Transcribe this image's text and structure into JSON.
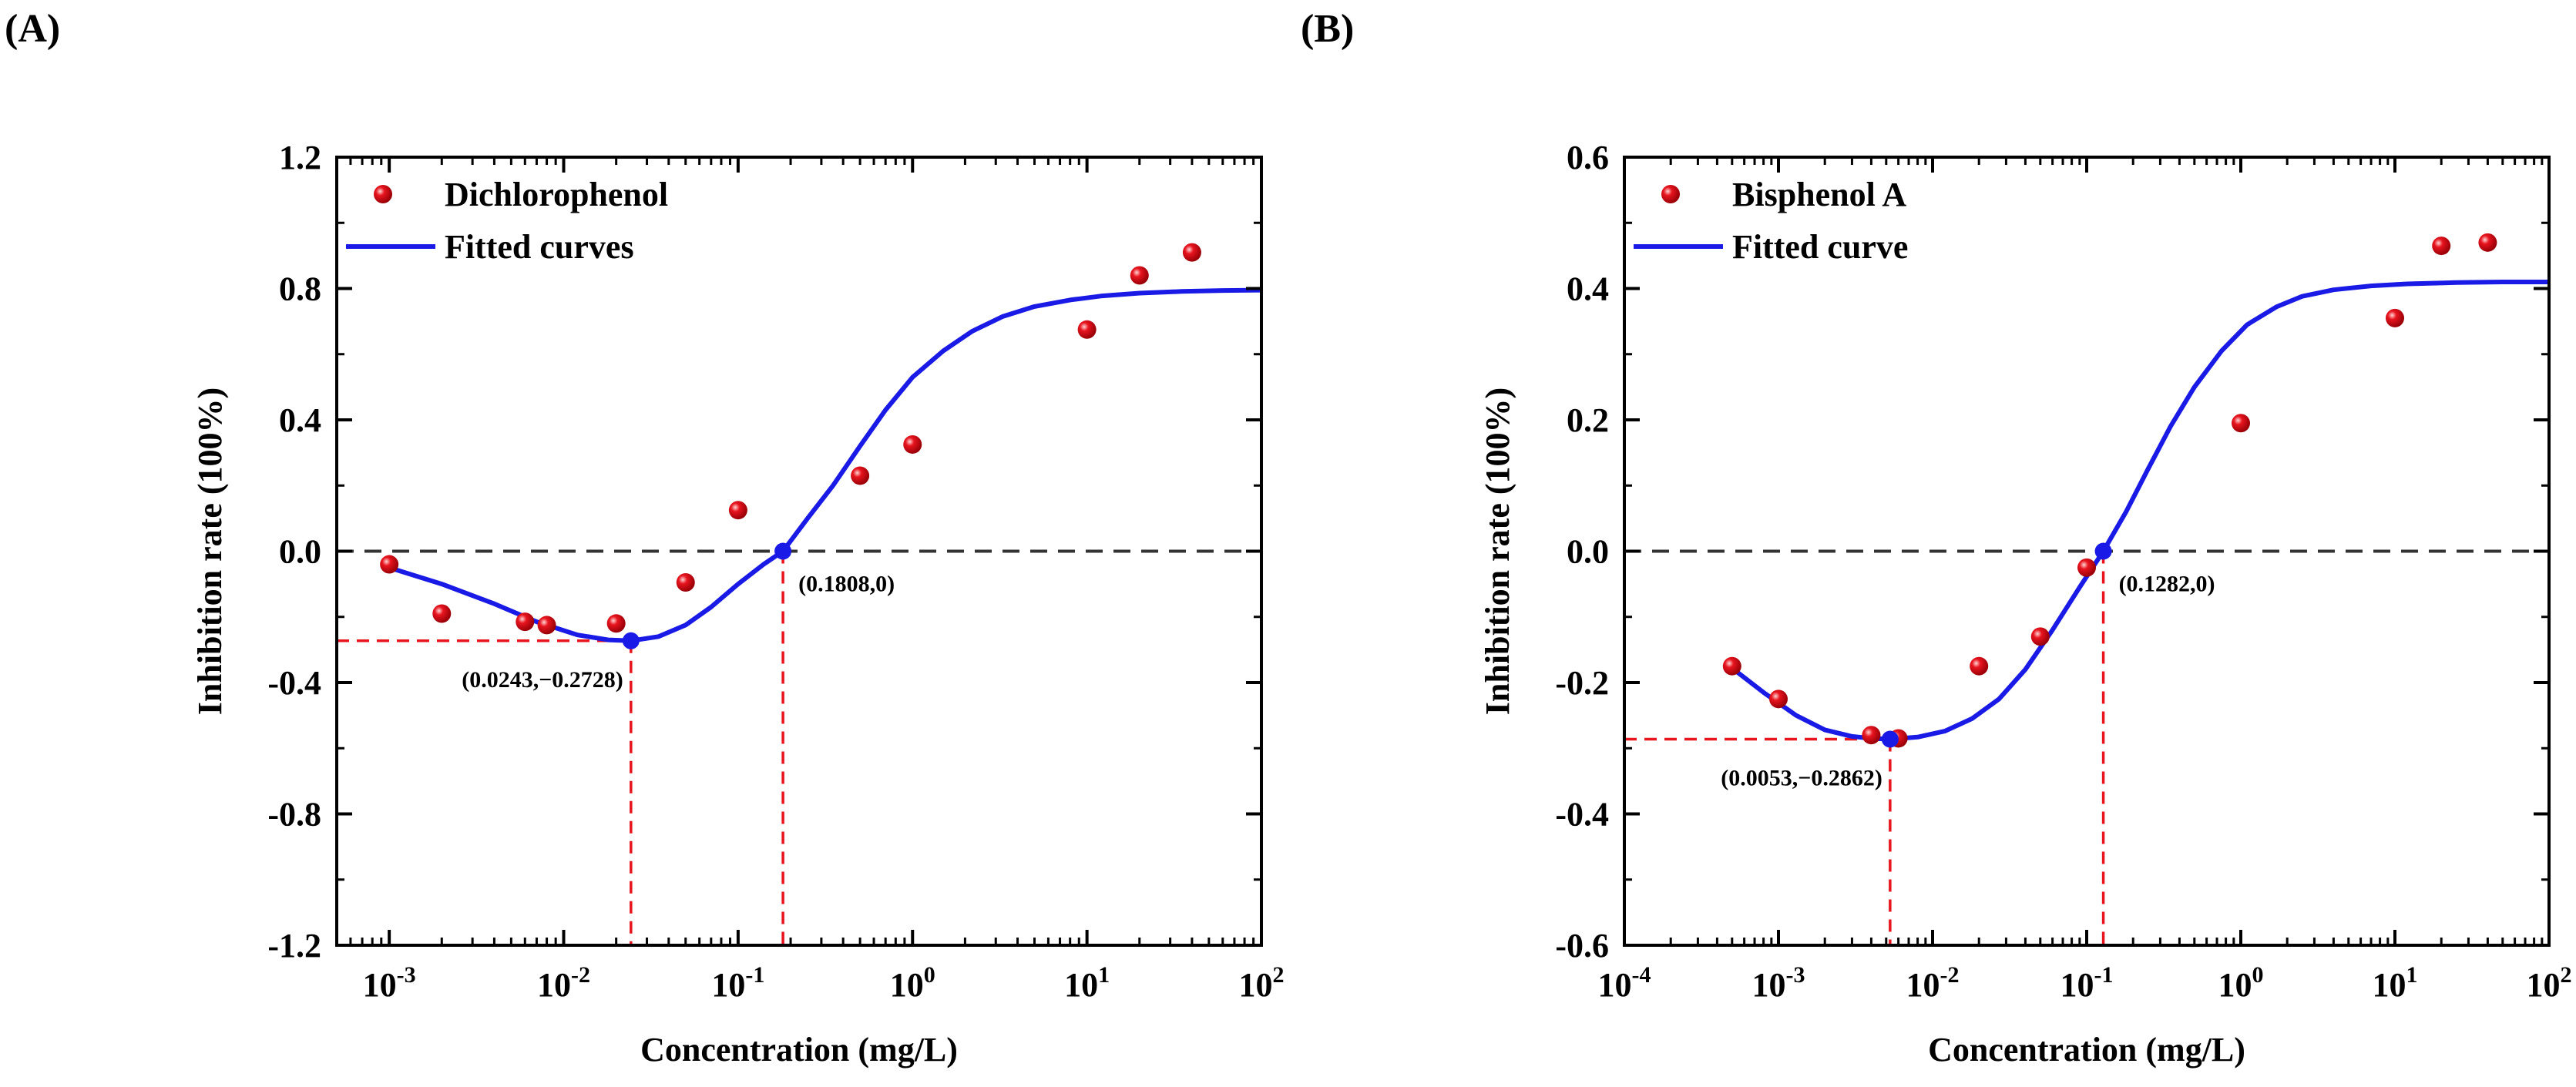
{
  "panels": [
    {
      "label": "(A)"
    },
    {
      "label": "(B)"
    }
  ],
  "colors": {
    "points": "#e8141e",
    "curve": "#1a1ae6",
    "special": "#1a1ae6",
    "zero_line": "#333333",
    "guide": "#e8141e"
  },
  "chart_data": [
    {
      "type": "scatter",
      "xscale": "log",
      "xlim": [
        0.0005,
        100
      ],
      "ylim": [
        -1.2,
        1.2
      ],
      "xlabel": "Concentration (mg/L)",
      "ylabel": "Inhibition rate (100%)",
      "xticks": [
        "10^-3",
        "10^-2",
        "10^-1",
        "10^0",
        "10^1",
        "10^2"
      ],
      "yticks": [
        "-1.2",
        "-0.8",
        "-0.4",
        "0.0",
        "0.4",
        "0.8",
        "1.2"
      ],
      "legend_position": "top-left",
      "series": [
        {
          "name": "Dichlorophenol",
          "kind": "points",
          "x": [
            0.001,
            0.002,
            0.006,
            0.008,
            0.02,
            0.05,
            0.1,
            0.5,
            1,
            10,
            20,
            40
          ],
          "y": [
            -0.04,
            -0.19,
            -0.215,
            -0.225,
            -0.22,
            -0.095,
            0.125,
            0.23,
            0.325,
            0.675,
            0.84,
            0.91
          ]
        },
        {
          "name": "Fitted curves",
          "kind": "line",
          "x": [
            0.001,
            0.002,
            0.004,
            0.007,
            0.012,
            0.018,
            0.0243,
            0.035,
            0.05,
            0.07,
            0.1,
            0.14,
            0.1808,
            0.25,
            0.35,
            0.5,
            0.7,
            1,
            1.5,
            2.2,
            3.3,
            5,
            8,
            12,
            20,
            35,
            60,
            100
          ],
          "y": [
            -0.05,
            -0.1,
            -0.16,
            -0.215,
            -0.255,
            -0.27,
            -0.2728,
            -0.26,
            -0.225,
            -0.17,
            -0.1,
            -0.04,
            0,
            0.1,
            0.2,
            0.32,
            0.43,
            0.53,
            0.61,
            0.67,
            0.715,
            0.745,
            0.765,
            0.777,
            0.786,
            0.791,
            0.794,
            0.795
          ]
        }
      ],
      "special_points": [
        {
          "x": 0.0243,
          "y": -0.2728,
          "label": "(0.0243,−0.2728)"
        },
        {
          "x": 0.1808,
          "y": 0,
          "label": "(0.1808,0)"
        }
      ]
    },
    {
      "type": "scatter",
      "xscale": "log",
      "xlim": [
        0.0001,
        100
      ],
      "ylim": [
        -0.6,
        0.6
      ],
      "xlabel": "Concentration (mg/L)",
      "ylabel": "Inhibition rate (100%)",
      "xticks": [
        "10^-4",
        "10^-3",
        "10^-2",
        "10^-1",
        "10^0",
        "10^1",
        "10^2"
      ],
      "yticks": [
        "-0.6",
        "-0.4",
        "-0.2",
        "0.0",
        "0.2",
        "0.4",
        "0.6"
      ],
      "legend_position": "top-left",
      "series": [
        {
          "name": "Bisphenol A",
          "kind": "points",
          "x": [
            0.0005,
            0.001,
            0.004,
            0.006,
            0.02,
            0.05,
            0.1,
            1,
            10,
            20,
            40
          ],
          "y": [
            -0.175,
            -0.225,
            -0.28,
            -0.285,
            -0.175,
            -0.13,
            -0.025,
            0.195,
            0.355,
            0.465,
            0.47
          ]
        },
        {
          "name": "Fitted curve",
          "kind": "line",
          "x": [
            0.0005,
            0.0008,
            0.0013,
            0.002,
            0.003,
            0.004,
            0.0053,
            0.008,
            0.012,
            0.018,
            0.027,
            0.04,
            0.06,
            0.09,
            0.1282,
            0.18,
            0.25,
            0.35,
            0.5,
            0.75,
            1.1,
            1.7,
            2.5,
            4,
            7,
            12,
            25,
            50,
            100
          ],
          "y": [
            -0.178,
            -0.215,
            -0.25,
            -0.272,
            -0.282,
            -0.285,
            -0.2862,
            -0.283,
            -0.274,
            -0.255,
            -0.225,
            -0.18,
            -0.12,
            -0.055,
            0,
            0.06,
            0.125,
            0.19,
            0.25,
            0.305,
            0.345,
            0.372,
            0.388,
            0.398,
            0.404,
            0.407,
            0.409,
            0.41,
            0.41
          ]
        }
      ],
      "special_points": [
        {
          "x": 0.0053,
          "y": -0.2862,
          "label": "(0.0053,−0.2862)"
        },
        {
          "x": 0.1282,
          "y": 0,
          "label": "(0.1282,0)"
        }
      ]
    }
  ]
}
